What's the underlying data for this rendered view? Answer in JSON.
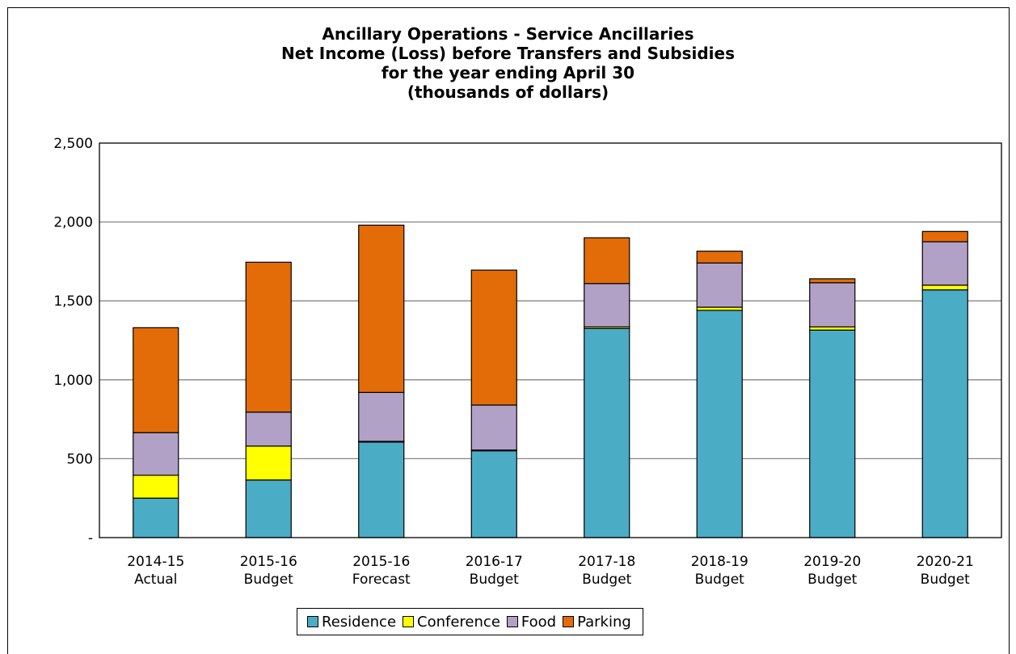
{
  "chart_data": {
    "type": "bar",
    "stacked": true,
    "title": [
      "Ancillary Operations - Service Ancillaries",
      "Net Income (Loss) before Transfers and Subsidies",
      "for the year ending April 30",
      "(thousands of dollars)"
    ],
    "categories": [
      [
        "2014-15",
        "Actual"
      ],
      [
        "2015-16",
        "Budget"
      ],
      [
        "2015-16",
        "Forecast"
      ],
      [
        "2016-17",
        "Budget"
      ],
      [
        "2017-18",
        "Budget"
      ],
      [
        "2018-19",
        "Budget"
      ],
      [
        "2019-20",
        "Budget"
      ],
      [
        "2020-21",
        "Budget"
      ]
    ],
    "series": [
      {
        "name": "Residence",
        "color": "#4bacc6",
        "values": [
          250,
          365,
          605,
          550,
          1325,
          1440,
          1315,
          1570
        ]
      },
      {
        "name": "Conference",
        "color": "#ffff00",
        "values": [
          145,
          215,
          5,
          5,
          10,
          20,
          20,
          30
        ]
      },
      {
        "name": "Food",
        "color": "#b2a1c7",
        "values": [
          270,
          215,
          310,
          285,
          275,
          280,
          280,
          275
        ]
      },
      {
        "name": "Parking",
        "color": "#e36c09",
        "values": [
          665,
          950,
          1060,
          855,
          290,
          75,
          25,
          65
        ]
      }
    ],
    "ylim": [
      0,
      2500
    ],
    "yticks": [
      0,
      500,
      1000,
      1500,
      2000,
      2500
    ],
    "ytick_labels": [
      "-",
      "500",
      "1,000",
      "1,500",
      "2,000",
      "2,500"
    ],
    "grid": true,
    "legend_position": "bottom"
  }
}
